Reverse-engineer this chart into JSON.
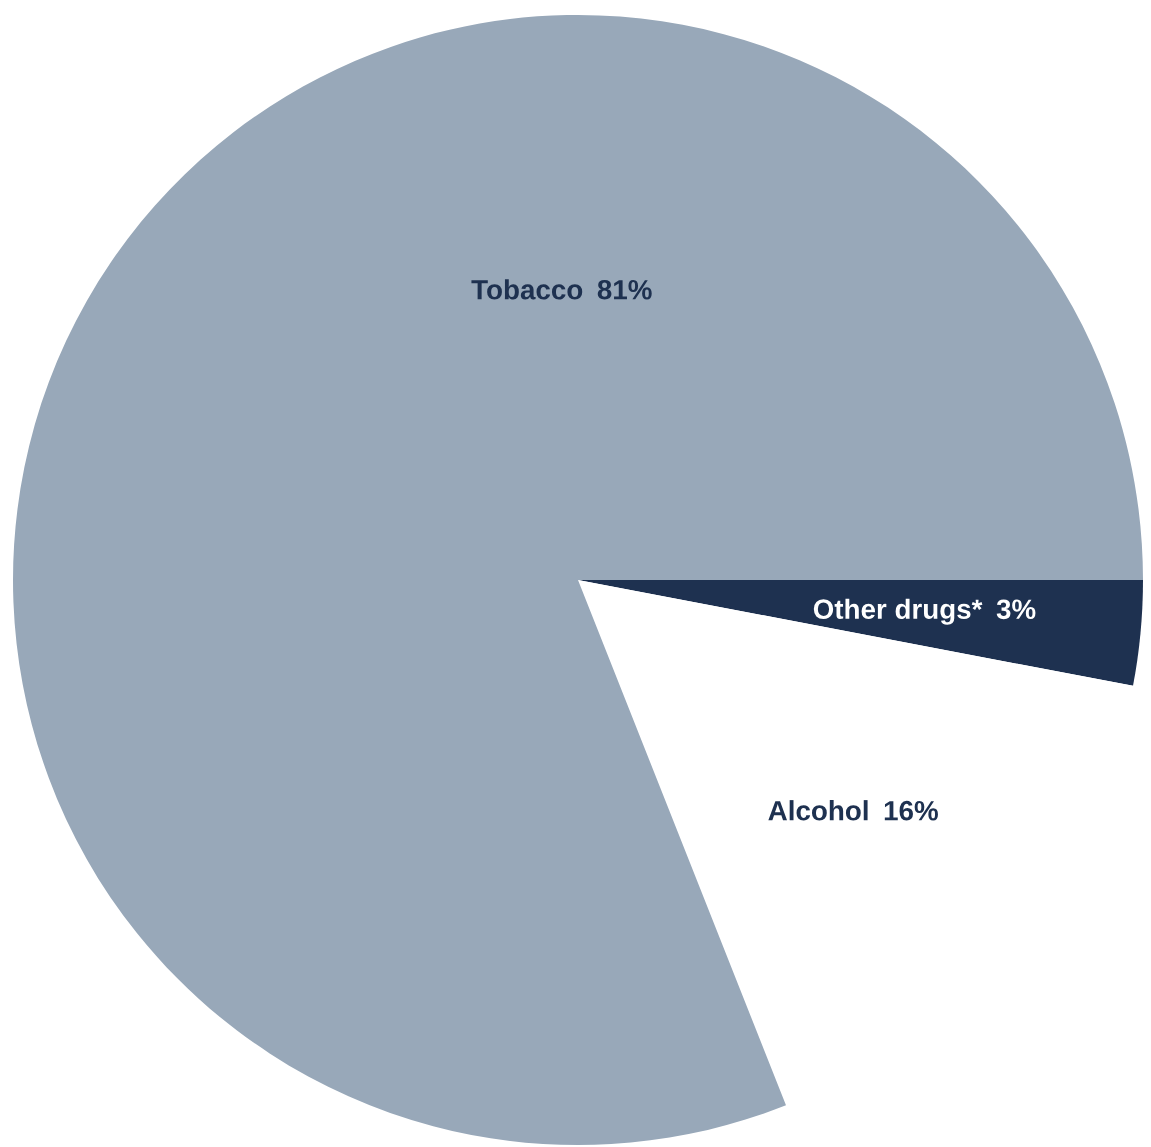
{
  "chart_data": {
    "type": "pie",
    "categories": [
      "Other drugs*",
      "Alcohol",
      "Tobacco"
    ],
    "values": [
      3,
      16,
      81
    ],
    "value_labels": [
      "3%",
      "16%",
      "81%"
    ],
    "colors": [
      "#1e3150",
      "#ffffff",
      "#98a8b9"
    ]
  }
}
